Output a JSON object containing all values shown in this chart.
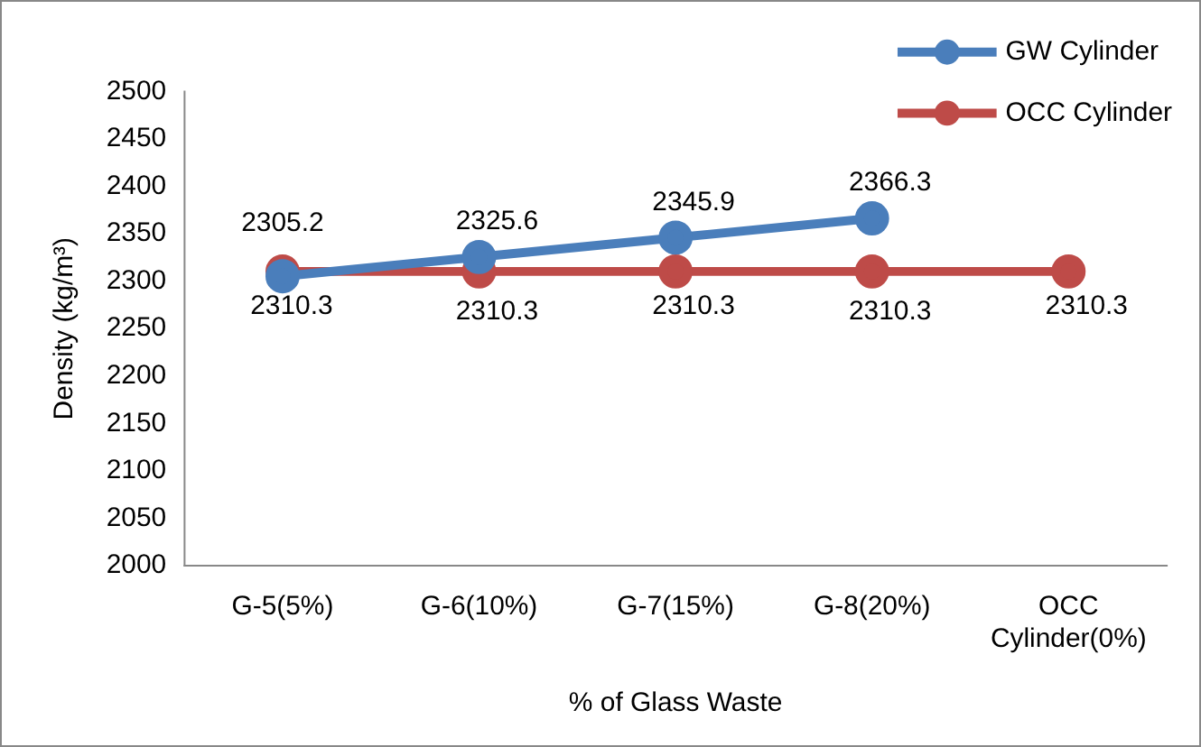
{
  "chart_data": {
    "type": "line",
    "xlabel": "% of Glass Waste",
    "ylabel": "Density (kg/m³)",
    "categories": [
      "G-5(5%)",
      "G-6(10%)",
      "G-7(15%)",
      "G-8(20%)",
      "OCC Cylinder(0%)"
    ],
    "series": [
      {
        "name": "GW Cylinder",
        "color": "#4a7ebb",
        "values": [
          2305.2,
          2325.6,
          2345.9,
          2366.3,
          null
        ]
      },
      {
        "name": "OCC Cylinder",
        "color": "#be4b48",
        "values": [
          2310.3,
          2310.3,
          2310.3,
          2310.3,
          2310.3
        ]
      }
    ],
    "ylim": [
      2000,
      2500
    ],
    "yticks": [
      2000,
      2050,
      2100,
      2150,
      2200,
      2250,
      2300,
      2350,
      2400,
      2450,
      2500
    ],
    "grid": false,
    "legend": "top right",
    "marker": "circle",
    "line_style": "solid",
    "data_labels": true
  }
}
